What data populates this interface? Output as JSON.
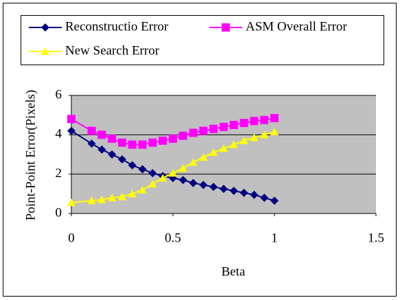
{
  "chart_data": {
    "type": "line",
    "x": [
      0,
      0.1,
      0.15,
      0.2,
      0.25,
      0.3,
      0.35,
      0.4,
      0.45,
      0.5,
      0.55,
      0.6,
      0.65,
      0.7,
      0.75,
      0.8,
      0.85,
      0.9,
      0.95,
      1.0
    ],
    "series": [
      {
        "name": "Reconstructio Error",
        "color": "#000080",
        "marker": "diamond",
        "values": [
          4.2,
          3.55,
          3.25,
          3.0,
          2.75,
          2.45,
          2.25,
          2.05,
          1.9,
          1.8,
          1.7,
          1.55,
          1.45,
          1.35,
          1.25,
          1.15,
          1.05,
          0.95,
          0.8,
          0.65
        ]
      },
      {
        "name": "ASM Overall Error",
        "color": "#ff00ff",
        "marker": "square",
        "values": [
          4.8,
          4.2,
          4.0,
          3.8,
          3.6,
          3.5,
          3.5,
          3.6,
          3.7,
          3.8,
          3.95,
          4.1,
          4.2,
          4.3,
          4.4,
          4.5,
          4.6,
          4.7,
          4.75,
          4.85
        ]
      },
      {
        "name": "New Search Error",
        "color": "#ffff00",
        "marker": "triangle",
        "values": [
          0.55,
          0.65,
          0.7,
          0.8,
          0.85,
          1.0,
          1.2,
          1.5,
          1.8,
          2.05,
          2.3,
          2.6,
          2.85,
          3.1,
          3.3,
          3.5,
          3.7,
          3.85,
          4.0,
          4.15
        ]
      }
    ],
    "x_label": "Beta",
    "y_label": "Point-Point Error(Pixels)",
    "xlim": [
      0,
      1.5
    ],
    "xticks": [
      0,
      0.5,
      1,
      1.5
    ],
    "ylim": [
      0,
      6
    ],
    "yticks": [
      0,
      2,
      4,
      6
    ],
    "grid": true,
    "legend": "top",
    "plot_background": "#c0c0c0"
  }
}
